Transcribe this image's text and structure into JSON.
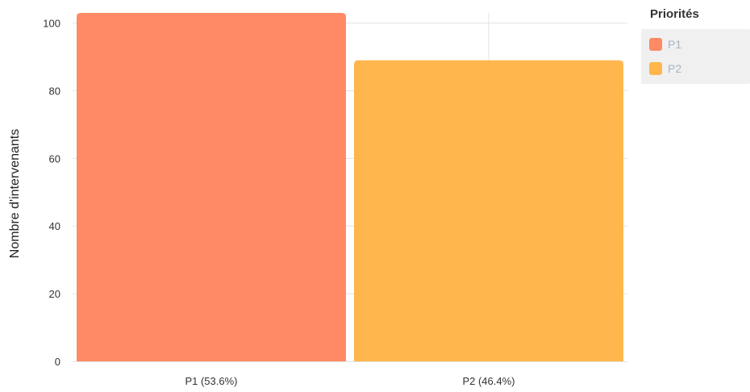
{
  "chart_data": {
    "type": "bar",
    "title": "",
    "xlabel": "",
    "ylabel": "Nombre d'intervenants",
    "categories": [
      "P1 (53.6%)",
      "P2 (46.4%)"
    ],
    "values": [
      103,
      89
    ],
    "colors": [
      "#ff8a65",
      "#ffb74d"
    ],
    "ylim": [
      0,
      103
    ],
    "yticks": [
      0,
      20,
      40,
      60,
      80,
      100
    ],
    "grid": true,
    "legend": {
      "title": "Priorités",
      "placement": "top-right",
      "entries": [
        {
          "label": "P1",
          "color": "#ff8a65"
        },
        {
          "label": "P2",
          "color": "#ffb74d"
        }
      ]
    }
  }
}
